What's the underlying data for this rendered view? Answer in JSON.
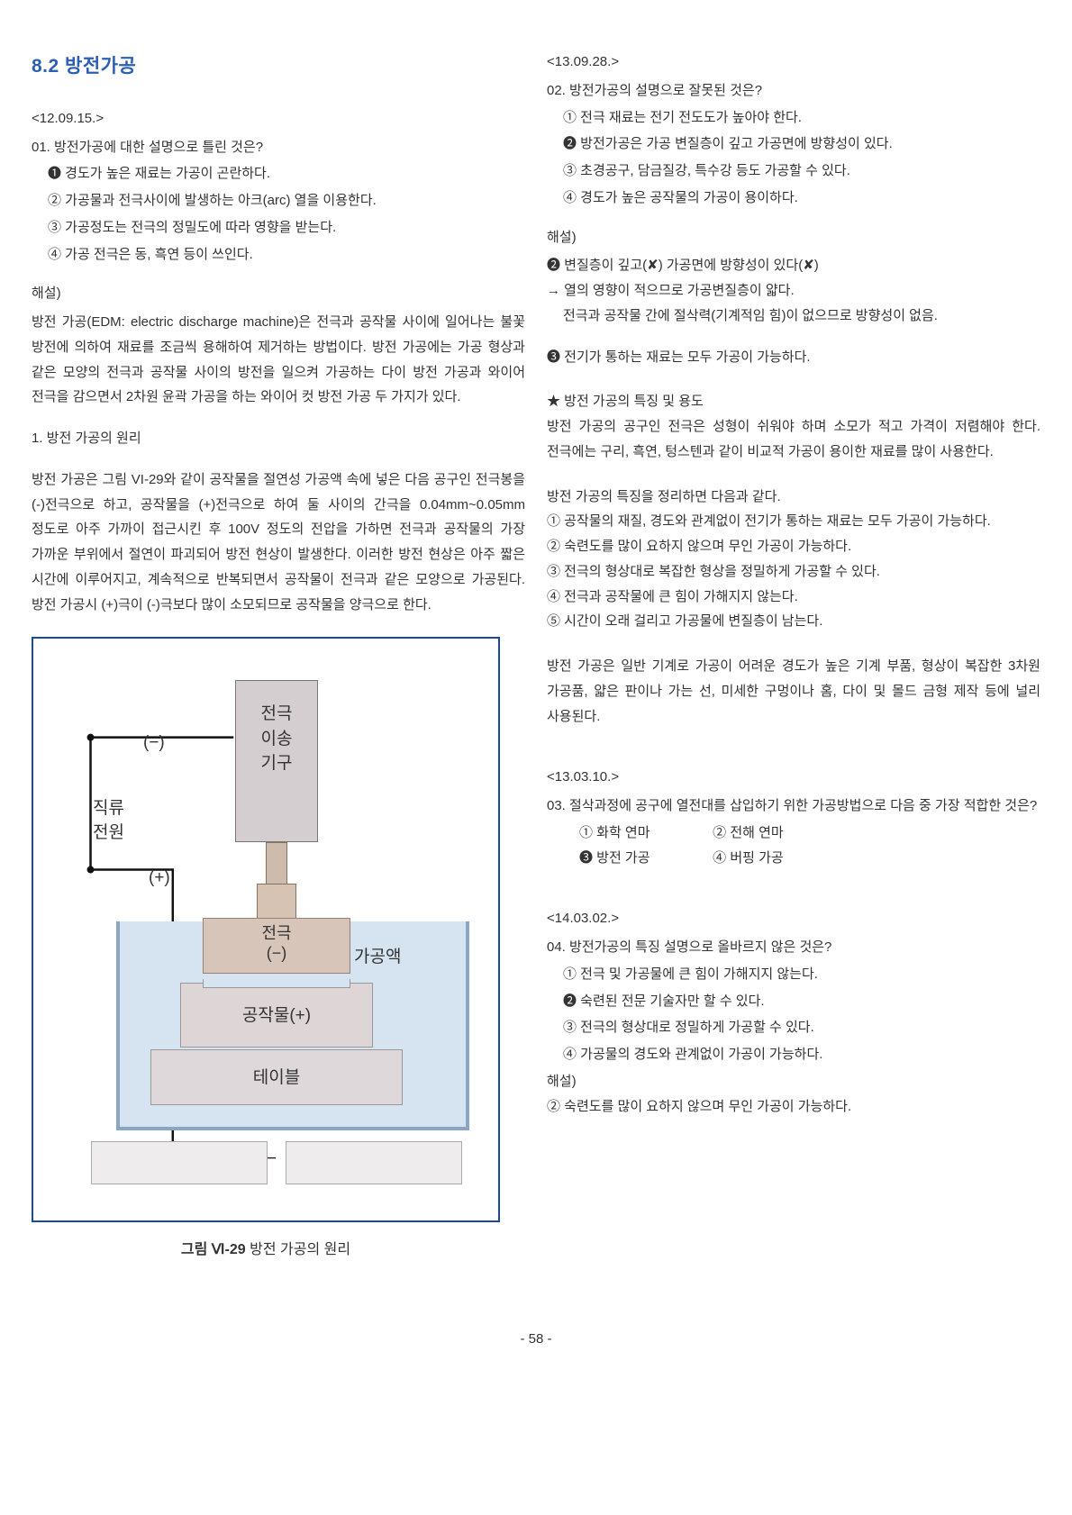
{
  "section_title": "8.2 방전가공",
  "left": {
    "q1_date": "<12.09.15.>",
    "q1_text": "01. 방전가공에 대한 설명으로 틀린 것은?",
    "q1_c1": "❶ 경도가 높은 재료는 가공이 곤란하다.",
    "q1_c2": "② 가공물과 전극사이에 발생하는 아크(arc) 열을 이용한다.",
    "q1_c3": "③ 가공정도는 전극의 정밀도에 따라 영향을 받는다.",
    "q1_c4": "④ 가공 전극은 동, 흑연 등이 쓰인다.",
    "explain": "해설)",
    "para1": "방전 가공(EDM: electric discharge machine)은 전극과 공작물 사이에 일어나는 불꽃 방전에 의하여 재료를 조금씩 용해하여 제거하는 방법이다. 방전 가공에는 가공 형상과 같은 모양의 전극과 공작물 사이의 방전을 일으켜 가공하는 다이 방전 가공과 와이어 전극을 감으면서 2차원 윤곽 가공을 하는 와이어 컷 방전 가공 두 가지가 있다.",
    "sub1": "1. 방전 가공의 원리",
    "para2": "방전 가공은 그림 VI-29와 같이 공작물을 절연성 가공액 속에 넣은 다음 공구인 전극봉을 (-)전극으로 하고, 공작물을 (+)전극으로 하여 둘 사이의 간극을 0.04mm~0.05mm 정도로 아주 가까이 접근시킨 후 100V 정도의 전압을 가하면 전극과 공작물의 가장 가까운 부위에서 절연이 파괴되어 방전 현상이 발생한다. 이러한 방전 현상은 아주 짧은 시간에 이루어지고, 계속적으로 반복되면서 공작물이 전극과 같은 모양으로 가공된다. 방전 가공시 (+)극이 (-)극보다 많이 소모되므로 공작물을 양극으로 한다.",
    "diagram": {
      "dc_label": "직류\n전원",
      "minus": "(−)",
      "plus": "(+)",
      "feed": "전극\n이송\n기구",
      "electrode": "전극\n(−)",
      "liquid": "가공액",
      "workpiece": "공작물(+)",
      "table": "테이블"
    },
    "caption_bold": "그림 Ⅵ-29",
    "caption_rest": " 방전 가공의 원리"
  },
  "right": {
    "q2_date": "<13.09.28.>",
    "q2_text": "02. 방전가공의 설명으로 잘못된 것은?",
    "q2_c1": "① 전극 재료는 전기 전도도가 높아야 한다.",
    "q2_c2": "❷ 방전가공은 가공 변질층이 깊고 가공면에 방향성이 있다.",
    "q2_c3": "③ 초경공구, 담금질강, 특수강 등도 가공할 수 있다.",
    "q2_c4": "④ 경도가 높은 공작물의 가공이 용이하다.",
    "explain": "해설)",
    "e_line1": "❷ 변질층이 깊고(✘) 가공면에 방향성이 있다(✘)",
    "e_line2": "→ 열의 영향이 적으므로 가공변질층이 얇다.",
    "e_line3": "전극과 공작물 간에 절삭력(기계적임 힘)이 없으므로 방향성이 없음.",
    "e_line4": "❸ 전기가 통하는 재료는 모두 가공이 가능하다.",
    "star_title": "★ 방전 가공의 특징 및 용도",
    "star_p1": "방전 가공의 공구인 전극은 성형이 쉬워야 하며 소모가 적고 가격이 저렴해야 한다. 전극에는 구리, 흑연, 텅스텐과 같이 비교적 가공이 용이한 재료를 많이 사용한다.",
    "feat_intro": "방전 가공의 특징을 정리하면 다음과 같다.",
    "feat1": "①  공작물의 재질, 경도와 관계없이 전기가 통하는 재료는 모두 가공이 가능하다.",
    "feat2": "② 숙련도를 많이 요하지 않으며 무인 가공이 가능하다.",
    "feat3": "③  전극의 형상대로 복잡한 형상을 정밀하게 가공할 수 있다.",
    "feat4": "④  전극과 공작물에 큰 힘이 가해지지 않는다.",
    "feat5": "⑤ 시간이 오래 걸리고 가공물에 변질층이 남는다.",
    "use_p": "방전 가공은 일반 기계로 가공이 어려운 경도가 높은 기계 부품, 형상이 복잡한 3차원 가공품, 얇은 판이나 가는 선, 미세한 구멍이나 홈, 다이 및 몰드 금형 제작 등에 널리 사용된다.",
    "q3_date": "<13.03.10.>",
    "q3_text": "03. 절삭과정에 공구에 열전대를 삽입하기 위한 가공방법으로 다음 중 가장 적합한 것은?",
    "q3_c1": "① 화학 연마",
    "q3_c2": "② 전해 연마",
    "q3_c3": "❸ 방전 가공",
    "q3_c4": "④ 버핑 가공",
    "q4_date": "<14.03.02.>",
    "q4_text": "04. 방전가공의 특징 설명으로 올바르지 않은 것은?",
    "q4_c1": "① 전극 및 가공물에 큰 힘이 가해지지 않는다.",
    "q4_c2": "❷ 숙련된 전문 기술자만 할 수 있다.",
    "q4_c3": "③ 전극의 형상대로 정밀하게 가공할 수 있다.",
    "q4_c4": "④ 가공물의 경도와 관계없이 가공이 가능하다.",
    "explain2": "해설)",
    "e2_line": "② 숙련도를 많이 요하지 않으며 무인 가공이 가능하다."
  },
  "page_num": "- 58 -"
}
